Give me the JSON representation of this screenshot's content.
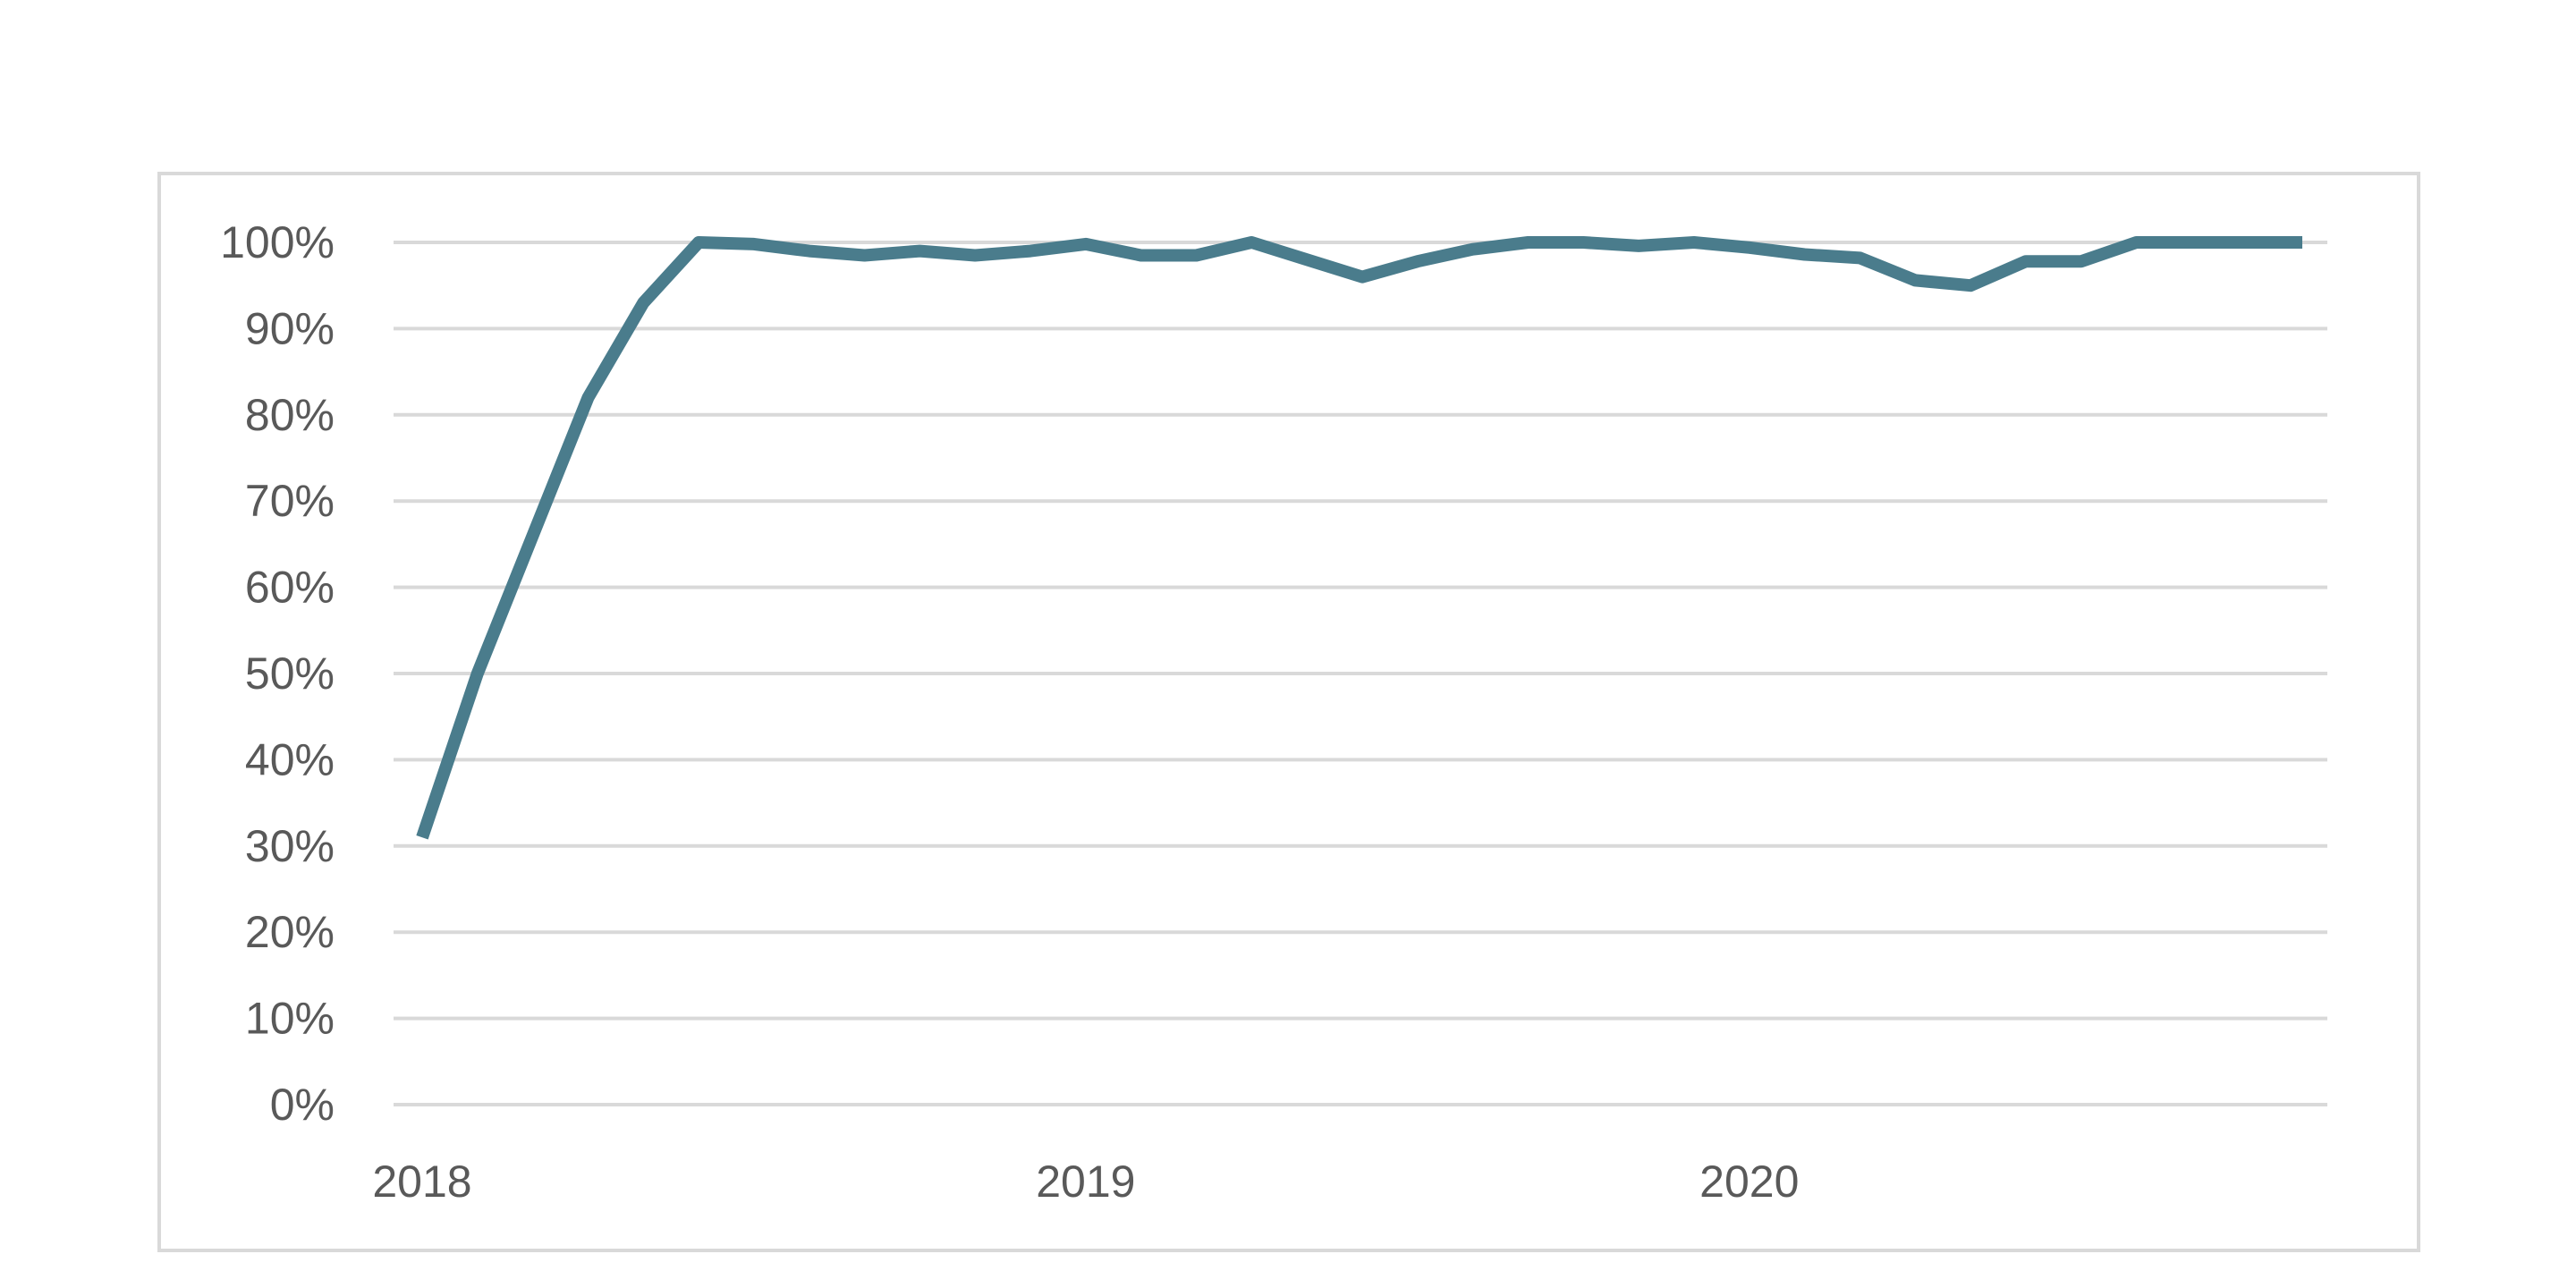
{
  "chart_data": {
    "type": "line",
    "title": "",
    "xlabel": "",
    "ylabel": "",
    "x_tick_labels": [
      "2018",
      "2019",
      "2020"
    ],
    "y_tick_labels": [
      "0%",
      "10%",
      "20%",
      "30%",
      "40%",
      "50%",
      "60%",
      "70%",
      "80%",
      "90%",
      "100%"
    ],
    "ylim": [
      0,
      100
    ],
    "grid": true,
    "legend": "none",
    "series": [
      {
        "color": "#4a7c8c",
        "values": [
          31,
          50,
          66,
          82,
          93,
          100,
          99.8,
          99,
          98.5,
          99,
          98.5,
          99,
          99.8,
          98.5,
          98.5,
          100,
          98,
          96,
          97.8,
          99.2,
          100,
          100,
          99.6,
          100,
          99.4,
          98.6,
          98.2,
          95.6,
          95,
          97.8,
          97.8,
          100,
          100,
          100,
          100
        ]
      }
    ]
  }
}
